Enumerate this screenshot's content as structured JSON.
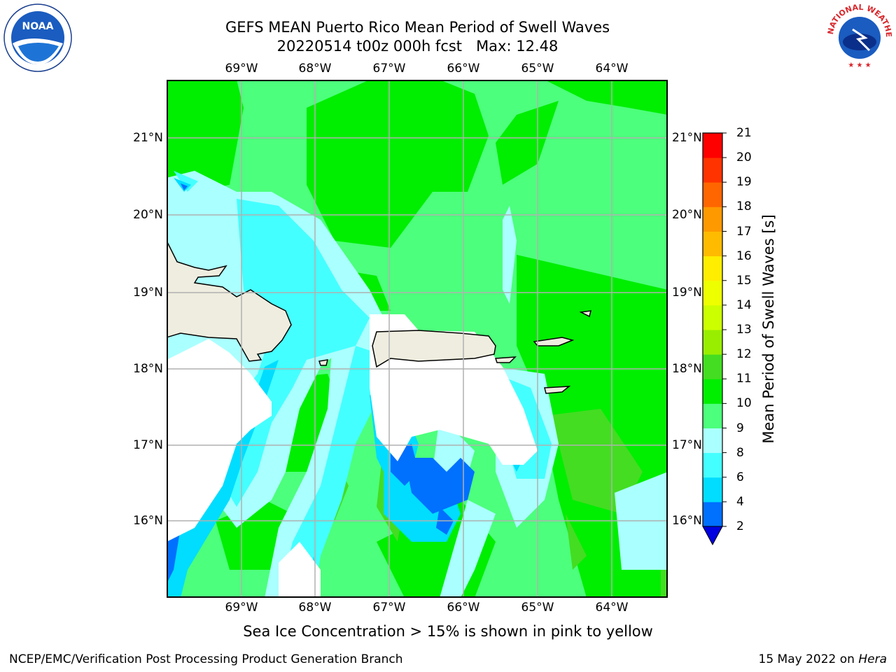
{
  "header": {
    "title_line1": "GEFS MEAN Puerto Rico Mean Period of Swell Waves",
    "title_line2": "20220514 t00z 000h fcst   Max: 12.48"
  },
  "logos": {
    "noaa_text": "NOAA",
    "noaa_ring_text": "NATIONAL OCEANIC AND ATMOSPHERIC ADMINISTRATION · U.S. DEPARTMENT OF COMMERCE",
    "nws_ring_text": "NATIONAL WEATHER SERVICE"
  },
  "axes": {
    "lon_ticks": [
      "69°W",
      "68°W",
      "67°W",
      "66°W",
      "65°W",
      "64°W"
    ],
    "lat_ticks": [
      "21°N",
      "20°N",
      "19°N",
      "18°N",
      "17°N",
      "16°N"
    ]
  },
  "colorbar": {
    "title": "Mean Period of Swell Waves [s]",
    "levels": [
      "2",
      "4",
      "6",
      "8",
      "9",
      "10",
      "11",
      "12",
      "13",
      "14",
      "15",
      "16",
      "17",
      "18",
      "19",
      "20",
      "21"
    ],
    "colors": [
      "#0000e0",
      "#0070ff",
      "#00ddff",
      "#44ffff",
      "#aaffff",
      "#4cff7c",
      "#00ee00",
      "#44dd22",
      "#99ee00",
      "#ccff00",
      "#eeff00",
      "#ffee00",
      "#ffbb00",
      "#ff9900",
      "#ff6600",
      "#ff3300",
      "#ff0000"
    ],
    "extend_color": "#0000e0"
  },
  "map_colors": {
    "land": "#eeeddf",
    "nodata": "#ffffff",
    "grid": "#b0b0b0",
    "coast": "#000000"
  },
  "notes": {
    "ice_note": "Sea Ice Concentration > 15% is shown in pink to yellow"
  },
  "footer": {
    "left": "NCEP/EMC/Verification Post Processing Product Generation Branch",
    "right_date": "15 May 2022 on ",
    "right_host": "Hera"
  }
}
